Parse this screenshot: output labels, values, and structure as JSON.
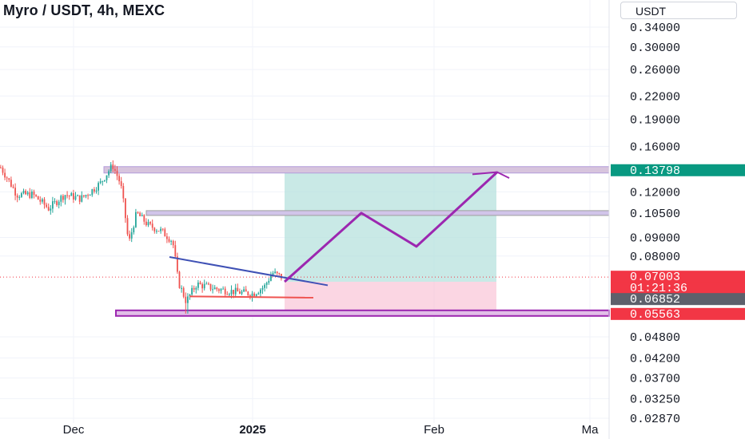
{
  "header": {
    "title": "Myro / USDT, 4h, MEXC",
    "currency": "USDT"
  },
  "colors": {
    "candle_up": "#26a69a",
    "candle_down": "#ef5350",
    "target_zone": "#b2dfdb",
    "stop_zone": "#f8bbd0",
    "resistance_band": "#d7c4dd",
    "support_band": "#e1bee7",
    "projection": "#9c27b0",
    "trendline": "#3f51b5",
    "level_price_badge": "#089981",
    "current_price_badge": "#f23645",
    "prev_close_badge": "#5d606b"
  },
  "chart_data": {
    "type": "candlestick",
    "y_scale": "log",
    "y_ticks": [
      "0.34000",
      "0.30000",
      "0.26000",
      "0.22000",
      "0.19000",
      "0.16000",
      "0.12000",
      "0.09000",
      "0.08000",
      "0.04800",
      "0.04200",
      "0.03700",
      "0.03250",
      "0.02870"
    ],
    "x_ticks": [
      {
        "label": "Dec",
        "bold": false
      },
      {
        "label": "2025",
        "bold": true
      },
      {
        "label": "Feb",
        "bold": false
      },
      {
        "label": "Ma",
        "bold": false
      }
    ],
    "price_badges": [
      {
        "value": "0.13798",
        "kind": "level"
      },
      {
        "value": "0.10500",
        "kind": "plain"
      },
      {
        "value": "0.07003",
        "kind": "current"
      },
      {
        "value": "01:21:36",
        "kind": "countdown"
      },
      {
        "value": "0.06852",
        "kind": "prev"
      },
      {
        "value": "0.05563",
        "kind": "current"
      }
    ],
    "levels": {
      "resistance_top": 0.13798,
      "resistance_mid": 0.105,
      "support": 0.05563,
      "entry": 0.07003
    },
    "position": {
      "entry": 0.068,
      "target": 0.13798,
      "stop": 0.05563
    },
    "projection_path": [
      0.068,
      0.105,
      0.085,
      0.136
    ],
    "candles_summary": {
      "start": 0.14,
      "high": 0.142,
      "low": 0.057,
      "last": 0.07003
    }
  }
}
